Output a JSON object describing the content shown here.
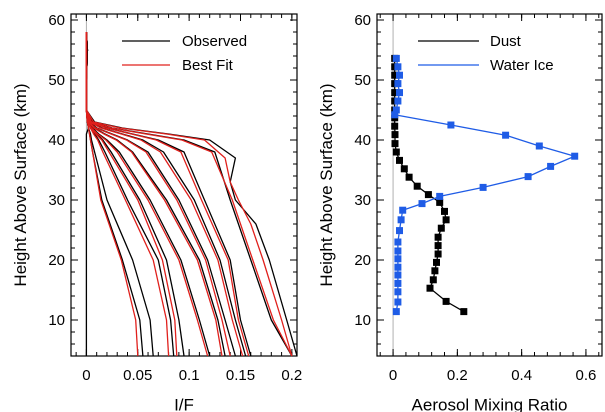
{
  "chart_data": [
    {
      "type": "line",
      "xlabel": "I/F",
      "ylabel": "Height Above Surface (km)",
      "xlim": [
        -0.015,
        0.205
      ],
      "ylim": [
        4,
        61
      ],
      "xticks": [
        0,
        0.05,
        0.1,
        0.15,
        0.2
      ],
      "xtick_labels": [
        "0",
        "0.05",
        "0.1",
        "0.15",
        "0.2"
      ],
      "yticks": [
        10,
        20,
        30,
        40,
        50,
        60
      ],
      "ytick_labels": [
        "10",
        "20",
        "30",
        "40",
        "50",
        "60"
      ],
      "zero_line": true,
      "legend": {
        "position": "top-right",
        "entries": [
          "Observed",
          "Best Fit"
        ]
      },
      "series_colors": {
        "Observed": "#000000",
        "Best Fit": "#e0201c"
      },
      "profiles": [
        {
          "name": "Observed",
          "y": [
            4,
            10,
            20,
            30,
            38,
            40,
            41,
            42,
            43,
            45,
            50,
            55,
            58
          ],
          "x": [
            0.0,
            0.0,
            0.0,
            0.0,
            0.0,
            0.0,
            0.0,
            0.002,
            0.001,
            0.0,
            0.0,
            0.001,
            0.0
          ]
        },
        {
          "name": "Observed",
          "y": [
            4,
            10,
            20,
            30,
            38,
            40,
            41,
            42,
            43,
            45,
            50,
            55,
            58
          ],
          "x": [
            0.055,
            0.052,
            0.035,
            0.015,
            0.006,
            0.004,
            0.003,
            0.002,
            0.001,
            0.0,
            0.0,
            0.001,
            0.0
          ]
        },
        {
          "name": "Observed",
          "y": [
            4,
            10,
            20,
            30,
            38,
            40,
            41,
            42,
            43,
            45,
            50,
            55,
            58
          ],
          "x": [
            0.065,
            0.062,
            0.045,
            0.02,
            0.008,
            0.005,
            0.004,
            0.002,
            0.001,
            0.0,
            0.0,
            0.001,
            0.0
          ]
        },
        {
          "name": "Observed",
          "y": [
            4,
            10,
            20,
            30,
            38,
            40,
            41,
            42,
            43,
            45,
            50,
            55,
            58
          ],
          "x": [
            0.085,
            0.082,
            0.07,
            0.04,
            0.018,
            0.012,
            0.008,
            0.004,
            0.002,
            0.0,
            0.0,
            0.001,
            0.0
          ]
        },
        {
          "name": "Observed",
          "y": [
            4,
            10,
            20,
            30,
            38,
            40,
            41,
            42,
            43,
            45,
            50,
            55,
            58
          ],
          "x": [
            0.095,
            0.09,
            0.078,
            0.052,
            0.024,
            0.016,
            0.01,
            0.005,
            0.002,
            0.0,
            0.0,
            0.001,
            0.0
          ]
        },
        {
          "name": "Observed",
          "y": [
            4,
            10,
            20,
            30,
            38,
            40,
            41,
            42,
            43,
            45,
            50,
            55,
            58
          ],
          "x": [
            0.12,
            0.11,
            0.092,
            0.062,
            0.032,
            0.02,
            0.012,
            0.006,
            0.002,
            0.0,
            0.0,
            0.001,
            0.0
          ]
        },
        {
          "name": "Observed",
          "y": [
            4,
            10,
            20,
            30,
            38,
            40,
            41,
            42,
            43,
            45,
            50,
            55,
            58
          ],
          "x": [
            0.135,
            0.128,
            0.11,
            0.078,
            0.045,
            0.03,
            0.018,
            0.008,
            0.003,
            0.0,
            0.0,
            0.001,
            0.0
          ]
        },
        {
          "name": "Observed",
          "y": [
            4,
            10,
            20,
            30,
            38,
            40,
            41,
            42,
            43,
            45,
            50,
            55,
            58
          ],
          "x": [
            0.145,
            0.135,
            0.118,
            0.09,
            0.06,
            0.04,
            0.025,
            0.01,
            0.003,
            0.0,
            0.0,
            0.001,
            0.0
          ]
        },
        {
          "name": "Observed",
          "y": [
            4,
            10,
            20,
            30,
            38,
            40,
            41,
            42,
            43,
            45,
            50,
            55,
            58
          ],
          "x": [
            0.155,
            0.145,
            0.13,
            0.105,
            0.075,
            0.055,
            0.035,
            0.015,
            0.004,
            0.0,
            0.0,
            0.001,
            0.0
          ]
        },
        {
          "name": "Observed",
          "y": [
            4,
            10,
            20,
            30,
            38,
            40,
            41,
            42,
            43,
            45,
            50,
            55,
            58
          ],
          "x": [
            0.16,
            0.15,
            0.14,
            0.115,
            0.095,
            0.07,
            0.045,
            0.02,
            0.005,
            0.0,
            0.0,
            0.001,
            0.0
          ]
        },
        {
          "name": "Observed",
          "y": [
            4,
            10,
            20,
            30,
            38,
            40,
            41,
            42,
            43,
            45,
            50,
            55,
            58
          ],
          "x": [
            0.2,
            0.18,
            0.16,
            0.14,
            0.125,
            0.095,
            0.06,
            0.025,
            0.006,
            0.0,
            0.0,
            0.001,
            0.0
          ]
        },
        {
          "name": "Observed",
          "y": [
            4,
            10,
            20,
            26,
            30,
            33,
            37,
            40,
            41,
            42,
            43,
            45,
            50,
            55,
            58
          ],
          "x": [
            0.205,
            0.195,
            0.178,
            0.165,
            0.145,
            0.14,
            0.145,
            0.12,
            0.08,
            0.035,
            0.008,
            0.0,
            0.0,
            0.001,
            0.0
          ]
        },
        {
          "name": "Best Fit",
          "y": [
            4,
            10,
            20,
            30,
            38,
            40,
            41,
            42,
            43,
            45,
            50,
            55,
            58
          ],
          "x": [
            0.05,
            0.048,
            0.034,
            0.014,
            0.006,
            0.004,
            0.003,
            0.002,
            0.001,
            0.0,
            0.0,
            0.0,
            0.0
          ]
        },
        {
          "name": "Best Fit",
          "y": [
            4,
            10,
            20,
            30,
            38,
            40,
            41,
            42,
            43,
            45,
            50,
            55,
            58
          ],
          "x": [
            0.08,
            0.078,
            0.065,
            0.038,
            0.016,
            0.011,
            0.007,
            0.004,
            0.001,
            0.0,
            0.0,
            0.0,
            0.0
          ]
        },
        {
          "name": "Best Fit",
          "y": [
            4,
            10,
            20,
            30,
            38,
            40,
            41,
            42,
            43,
            45,
            50,
            55,
            58
          ],
          "x": [
            0.088,
            0.086,
            0.074,
            0.05,
            0.022,
            0.015,
            0.009,
            0.004,
            0.001,
            0.0,
            0.0,
            0.0,
            0.0
          ]
        },
        {
          "name": "Best Fit",
          "y": [
            4,
            10,
            20,
            30,
            38,
            40,
            41,
            42,
            43,
            45,
            50,
            55,
            58
          ],
          "x": [
            0.118,
            0.108,
            0.09,
            0.06,
            0.03,
            0.019,
            0.011,
            0.005,
            0.001,
            0.0,
            0.0,
            0.0,
            0.0
          ]
        },
        {
          "name": "Best Fit",
          "y": [
            4,
            10,
            20,
            30,
            38,
            40,
            41,
            42,
            43,
            45,
            50,
            55,
            58
          ],
          "x": [
            0.132,
            0.126,
            0.108,
            0.076,
            0.044,
            0.029,
            0.017,
            0.007,
            0.002,
            0.0,
            0.0,
            0.0,
            0.0
          ]
        },
        {
          "name": "Best Fit",
          "y": [
            4,
            10,
            20,
            30,
            38,
            40,
            41,
            42,
            43,
            45,
            50,
            55,
            58
          ],
          "x": [
            0.14,
            0.132,
            0.116,
            0.088,
            0.058,
            0.039,
            0.024,
            0.009,
            0.002,
            0.0,
            0.0,
            0.0,
            0.0
          ]
        },
        {
          "name": "Best Fit",
          "y": [
            4,
            10,
            20,
            30,
            38,
            40,
            41,
            42,
            43,
            45,
            50,
            55,
            58
          ],
          "x": [
            0.152,
            0.142,
            0.128,
            0.102,
            0.072,
            0.053,
            0.034,
            0.014,
            0.003,
            0.0,
            0.0,
            0.0,
            0.0
          ]
        },
        {
          "name": "Best Fit",
          "y": [
            4,
            10,
            20,
            30,
            38,
            40,
            41,
            42,
            43,
            45,
            50,
            55,
            58
          ],
          "x": [
            0.158,
            0.148,
            0.138,
            0.112,
            0.092,
            0.068,
            0.044,
            0.019,
            0.004,
            0.0,
            0.0,
            0.0,
            0.0
          ]
        },
        {
          "name": "Best Fit",
          "y": [
            4,
            10,
            20,
            30,
            38,
            40,
            41,
            42,
            43,
            45,
            50,
            55,
            58
          ],
          "x": [
            0.2,
            0.182,
            0.162,
            0.142,
            0.122,
            0.093,
            0.058,
            0.024,
            0.005,
            0.0,
            0.0,
            0.0,
            0.0
          ]
        },
        {
          "name": "Best Fit",
          "y": [
            4,
            10,
            20,
            26,
            30,
            33,
            37,
            40,
            41,
            42,
            43,
            45,
            50,
            55,
            58
          ],
          "x": [
            0.2,
            0.19,
            0.172,
            0.16,
            0.148,
            0.14,
            0.135,
            0.115,
            0.078,
            0.033,
            0.007,
            0.0,
            0.0,
            0.0,
            0.0
          ]
        }
      ]
    },
    {
      "type": "line",
      "xlabel": "Aerosol Mixing Ratio",
      "ylabel": "Height Above Surface (km)",
      "xlim": [
        -0.05,
        0.65
      ],
      "ylim": [
        4,
        61
      ],
      "xticks": [
        0,
        0.2,
        0.4,
        0.6
      ],
      "xtick_labels": [
        "0",
        "0.2",
        "0.4",
        "0.6"
      ],
      "yticks": [
        10,
        20,
        30,
        40,
        50,
        60
      ],
      "ytick_labels": [
        "10",
        "20",
        "30",
        "40",
        "50",
        "60"
      ],
      "zero_line": true,
      "legend": {
        "position": "top-right",
        "entries": [
          "Dust",
          "Water Ice"
        ]
      },
      "series": [
        {
          "name": "Dust",
          "color": "#000000",
          "marker": "square",
          "points": [
            [
              0.005,
              53.6
            ],
            [
              0.005,
              52.2
            ],
            [
              0.005,
              50.8
            ],
            [
              0.005,
              49.4
            ],
            [
              0.005,
              47.9
            ],
            [
              0.005,
              46.5
            ],
            [
              0.005,
              45.0
            ],
            [
              0.005,
              43.7
            ],
            [
              0.005,
              42.3
            ],
            [
              0.006,
              40.9
            ],
            [
              0.006,
              39.4
            ],
            [
              0.01,
              38.0
            ],
            [
              0.02,
              36.6
            ],
            [
              0.035,
              35.2
            ],
            [
              0.05,
              33.8
            ],
            [
              0.075,
              32.3
            ],
            [
              0.11,
              30.9
            ],
            [
              0.145,
              29.6
            ],
            [
              0.16,
              28.1
            ],
            [
              0.165,
              26.7
            ],
            [
              0.15,
              25.3
            ],
            [
              0.14,
              23.8
            ],
            [
              0.14,
              22.4
            ],
            [
              0.14,
              21.0
            ],
            [
              0.135,
              19.6
            ],
            [
              0.13,
              18.2
            ],
            [
              0.125,
              16.7
            ],
            [
              0.115,
              15.3
            ],
            [
              0.165,
              13.1
            ],
            [
              0.22,
              11.4
            ]
          ]
        },
        {
          "name": "Water Ice",
          "color": "#1f5ce6",
          "marker": "square",
          "points": [
            [
              0.01,
              53.6
            ],
            [
              0.015,
              52.2
            ],
            [
              0.02,
              50.8
            ],
            [
              0.015,
              49.4
            ],
            [
              0.02,
              47.9
            ],
            [
              0.015,
              46.5
            ],
            [
              0.01,
              45.0
            ],
            [
              0.005,
              44.2
            ],
            [
              0.18,
              42.5
            ],
            [
              0.35,
              40.8
            ],
            [
              0.455,
              39.0
            ],
            [
              0.565,
              37.3
            ],
            [
              0.49,
              35.6
            ],
            [
              0.42,
              33.9
            ],
            [
              0.28,
              32.1
            ],
            [
              0.145,
              30.6
            ],
            [
              0.09,
              29.4
            ],
            [
              0.03,
              28.3
            ],
            [
              0.025,
              26.7
            ],
            [
              0.02,
              24.9
            ],
            [
              0.015,
              23.0
            ],
            [
              0.015,
              21.5
            ],
            [
              0.015,
              20.2
            ],
            [
              0.015,
              18.8
            ],
            [
              0.015,
              17.5
            ],
            [
              0.015,
              16.1
            ],
            [
              0.015,
              14.7
            ],
            [
              0.015,
              13.0
            ],
            [
              0.01,
              11.4
            ]
          ]
        }
      ]
    }
  ]
}
